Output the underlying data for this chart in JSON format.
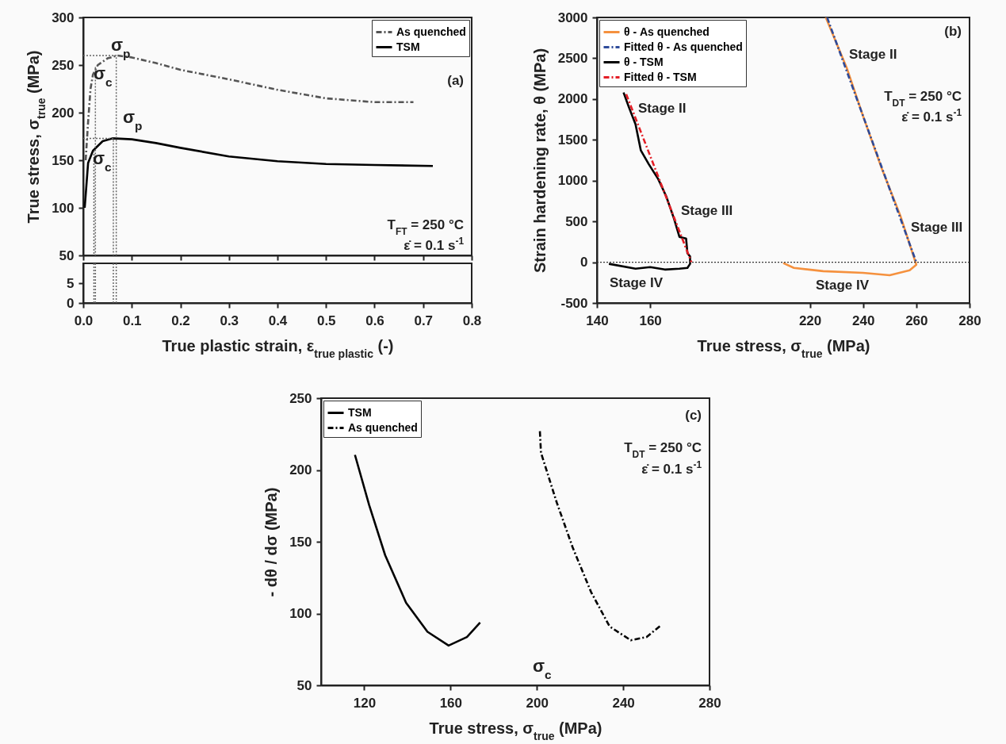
{
  "chart_data": [
    {
      "type": "line",
      "xlim": [
        0,
        0.8
      ],
      "xticks": [
        0,
        0.1,
        0.2,
        0.3,
        0.4,
        0.5,
        0.6,
        0.7,
        0.8
      ],
      "ylim": [
        50,
        300
      ],
      "yticks": [
        50,
        100,
        150,
        200,
        250,
        300
      ],
      "ylabel": "True stress, σ$_{true}$ (MPa)",
      "tick_labels": "y",
      "legend": "top right",
      "series": [
        {
          "name": "As quenched",
          "color": "#555555",
          "line_style": "dashed",
          "x": [
            0.005,
            0.01,
            0.015,
            0.02,
            0.03,
            0.05,
            0.07,
            0.1,
            0.15,
            0.2,
            0.3,
            0.4,
            0.5,
            0.6,
            0.68
          ],
          "values": [
            150,
            190,
            225,
            240,
            250,
            257,
            260,
            258,
            252,
            245,
            235,
            224,
            215,
            211,
            211
          ]
        },
        {
          "name": "TSM",
          "color": "#000000",
          "line_style": "solid",
          "x": [
            0.003,
            0.01,
            0.02,
            0.04,
            0.06,
            0.1,
            0.15,
            0.2,
            0.3,
            0.4,
            0.5,
            0.6,
            0.72
          ],
          "values": [
            100,
            147,
            160,
            170,
            173,
            172,
            168,
            163,
            154,
            149,
            146,
            145,
            144
          ]
        },
        {
          "color": "#666666",
          "line_style": "dotted",
          "x": [
            0.025,
            0.025
          ],
          "values": [
            248,
            50
          ]
        },
        {
          "color": "#666666",
          "line_style": "dotted",
          "x": [
            0,
            0.068,
            0.068
          ],
          "values": [
            260,
            260,
            50
          ]
        },
        {
          "color": "#666666",
          "line_style": "dotted",
          "x": [
            0,
            0.062,
            0.062
          ],
          "values": [
            173,
            173,
            50
          ]
        },
        {
          "color": "#666666",
          "line_style": "dotted",
          "x": [
            0.022,
            0.022
          ],
          "values": [
            160,
            50
          ]
        }
      ],
      "annotations": [
        "σ$_{p}$",
        "σ$_{c}$",
        "σ$_{p}$",
        "σ$_{c}$",
        "(a)",
        "T$_{FT}$ = 250 °C",
        "ε̇ = 0.1 s$^{-1}$"
      ]
    },
    {
      "type": "line",
      "xlim": [
        0,
        0.8
      ],
      "xticks": [
        {
          "value": 0,
          "label": "0.0"
        },
        0.1,
        0.2,
        0.3,
        0.4,
        0.5,
        0.6,
        0.7,
        0.8
      ],
      "ylim": [
        0,
        10
      ],
      "yticks": [
        0,
        5
      ],
      "xlabel": "True plastic strain, ε$_{true plastic}$ (-)",
      "series": [
        {
          "color": "#666666",
          "line_style": "dotted",
          "x": [
            0.025,
            0.025
          ],
          "values": [
            10,
            0
          ]
        },
        {
          "color": "#666666",
          "line_style": "dotted",
          "x": [
            0.068,
            0.068
          ],
          "values": [
            10,
            0
          ]
        },
        {
          "color": "#666666",
          "line_style": "dotted",
          "x": [
            0.062,
            0.062
          ],
          "values": [
            10,
            0
          ]
        },
        {
          "color": "#666666",
          "line_style": "dotted",
          "x": [
            0.022,
            0.022
          ],
          "values": [
            10,
            0
          ]
        }
      ]
    },
    {
      "type": "line",
      "xlim": [
        140,
        280
      ],
      "xticks": [
        140,
        160,
        220,
        240,
        260,
        280
      ],
      "ylim": [
        -500,
        3000
      ],
      "yticks": [
        -500,
        0,
        500,
        1000,
        1500,
        2000,
        2500,
        3000
      ],
      "xlabel": "True stress, σ$_{true}$ (MPa)",
      "ylabel": "Strain hardening rate, θ (MPa)",
      "legend": "top left",
      "ref_lines": [
        {
          "axis": "y",
          "value": 0,
          "color": "#333333",
          "line_style": "dotted"
        }
      ],
      "series": [
        {
          "name": "θ - As quenched",
          "color": "#f5913e",
          "line_style": "solid",
          "x": [
            226,
            234,
            240,
            247,
            254,
            259.5,
            260,
            257.5,
            250,
            240,
            225,
            214,
            210
          ],
          "values": [
            3000,
            2370,
            1790,
            1150,
            570,
            20,
            -30,
            -100,
            -160,
            -130,
            -110,
            -70,
            -10
          ]
        },
        {
          "name": "Fitted θ - As quenched",
          "color": "#2e4b9a",
          "line_style": "dashed",
          "x": [
            226.5,
            260
          ],
          "values": [
            3000,
            0
          ]
        },
        {
          "name": "θ - TSM",
          "color": "#000000",
          "line_style": "solid",
          "x": [
            150,
            152,
            154.5,
            156.5,
            159.5,
            163,
            166,
            169,
            171,
            173.5,
            174,
            175,
            175,
            174,
            171,
            165.5,
            160,
            154.5,
            144.5
          ],
          "values": [
            2080,
            1900,
            1690,
            1370,
            1200,
            1020,
            810,
            530,
            310,
            290,
            110,
            70,
            -20,
            -70,
            -80,
            -90,
            -60,
            -80,
            -20
          ]
        },
        {
          "name": "Fitted θ - TSM",
          "color": "#e41e26",
          "line_style": "dashed",
          "x": [
            151,
            175.5
          ],
          "values": [
            2060,
            0
          ]
        }
      ],
      "annotations": [
        "Stage II",
        "Stage III",
        "Stage IV",
        "Stage II",
        "Stage III",
        "Stage IV",
        "(b)",
        "T$_{DT}$ = 250 °C",
        "ε̇ = 0.1 s$^{-1}$"
      ]
    },
    {
      "type": "line",
      "xlim": [
        100,
        280
      ],
      "xticks": [
        120,
        160,
        200,
        240,
        280
      ],
      "ylim": [
        50,
        250
      ],
      "yticks": [
        50,
        100,
        150,
        200,
        250
      ],
      "xlabel": "True stress, σ$_{true}$ (MPa)",
      "ylabel": "- dθ / dσ (MPa)",
      "legend": "top left",
      "series": [
        {
          "name": "TSM",
          "color": "#000000",
          "line_style": "solid",
          "x": [
            115.7,
            122.3,
            129.7,
            139.4,
            149.3,
            159.1,
            167.6,
            173.7
          ],
          "values": [
            210.5,
            175.5,
            140.6,
            107.5,
            87.3,
            77.7,
            83.6,
            93.7
          ]
        },
        {
          "name": "As quenched",
          "color": "#000000",
          "line_style": "dashed",
          "x": [
            201.4,
            201.9,
            209.2,
            216.6,
            225.1,
            233.7,
            243.5,
            250.8,
            257.6
          ],
          "values": [
            227,
            212,
            177.4,
            146,
            115,
            91,
            81.4,
            83.6,
            91.9
          ]
        }
      ],
      "annotations": [
        "σ$_{c}$",
        "(c)",
        "T$_{DT}$ = 250 °C",
        "ε̇ = 0.1 s$^{-1}$"
      ]
    }
  ]
}
